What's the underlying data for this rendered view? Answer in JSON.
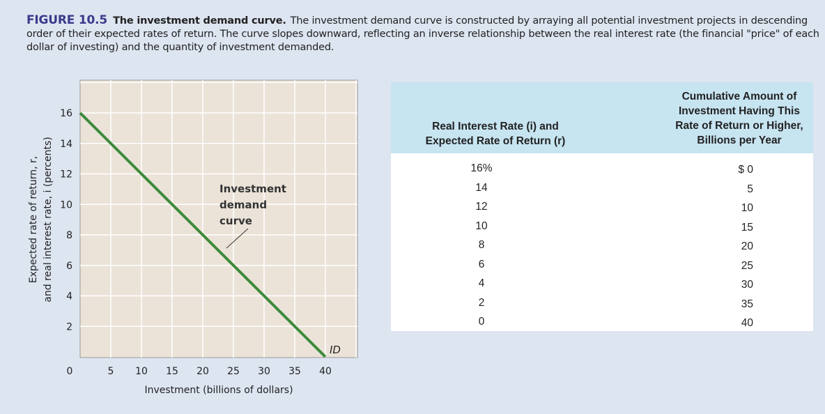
{
  "caption": {
    "figure_number": "FIGURE 10.5",
    "title": "The investment demand curve.",
    "text": "The investment demand curve is constructed by arraying all potential investment projects in descending order of their expected rates of return. The curve slopes downward, reflecting an inverse relationship between the real interest rate (the financial \"price\" of each dollar of investing) and the quantity of investment demanded."
  },
  "colors": {
    "curve": "#3d8a3a",
    "plot_bg": "#ebe3d8",
    "table_header_bg": "#c7e4f1",
    "figure_number": "#3a3a8a"
  },
  "chart_data": {
    "type": "line",
    "xlabel": "Investment (billions of dollars)",
    "ylabel_line1": "Expected rate of return, r,",
    "ylabel_line2": "and real interest rate, i (percents)",
    "xlim": [
      0,
      45
    ],
    "ylim": [
      0,
      18
    ],
    "x_ticks": [
      "0",
      "5",
      "10",
      "15",
      "20",
      "25",
      "30",
      "35",
      "40"
    ],
    "y_ticks": [
      "2",
      "4",
      "6",
      "8",
      "10",
      "12",
      "14",
      "16"
    ],
    "grid": true,
    "series": [
      {
        "name": "ID",
        "x": [
          0,
          5,
          10,
          15,
          20,
          25,
          30,
          35,
          40
        ],
        "y": [
          16,
          14,
          12,
          10,
          8,
          6,
          4,
          2,
          0
        ]
      }
    ],
    "annotation": [
      "Investment",
      "demand",
      "curve"
    ]
  },
  "table": {
    "header_rate": [
      "Real Interest Rate (i) and",
      "Expected Rate of Return (r)"
    ],
    "header_amount": [
      "Cumulative Amount of",
      "Investment Having This",
      "Rate of Return or Higher,",
      "Billions per Year"
    ],
    "rates": [
      "16%",
      "14",
      "12",
      "10",
      "8",
      "6",
      "4",
      "2",
      "0"
    ],
    "amounts": [
      "$ 0",
      "5",
      "10",
      "15",
      "20",
      "25",
      "30",
      "35",
      "40"
    ]
  }
}
